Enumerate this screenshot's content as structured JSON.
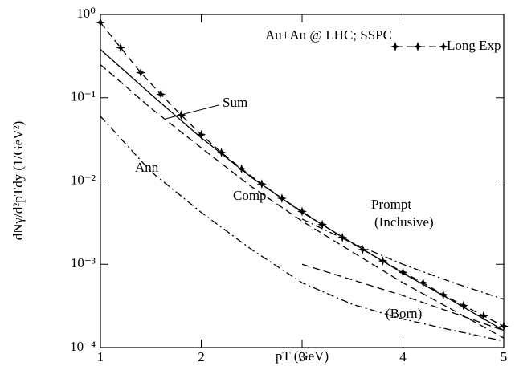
{
  "chart_data": {
    "type": "line",
    "annotations": [
      "Au+Au @ LHC; SSPC",
      "Prompt"
    ],
    "xlabel": "pT (GeV)",
    "ylabel": "dNγ/d²pTdy (1/GeV²)",
    "xlim": [
      1,
      5
    ],
    "xticks": [
      1,
      2,
      3,
      4,
      5
    ],
    "ylim": [
      0.0001,
      1
    ],
    "yscale": "log",
    "yticks": [
      {
        "value": 0.0001,
        "label": "10⁻⁴"
      },
      {
        "value": 0.001,
        "label": "10⁻³"
      },
      {
        "value": 0.01,
        "label": "10⁻²"
      },
      {
        "value": 0.1,
        "label": "10⁻¹"
      },
      {
        "value": 1,
        "label": "10⁰"
      }
    ],
    "series": [
      {
        "name": "Long Exp",
        "color": "#000000",
        "style": "dashed",
        "marker": "star",
        "x": [
          1.0,
          1.2,
          1.4,
          1.6,
          1.8,
          2.0,
          2.2,
          2.4,
          2.6,
          2.8,
          3.0,
          3.2,
          3.4,
          3.6,
          3.8,
          4.0,
          4.2,
          4.4,
          4.6,
          4.8,
          5.0
        ],
        "values": [
          0.8,
          0.4,
          0.2,
          0.11,
          0.062,
          0.036,
          0.022,
          0.014,
          0.0092,
          0.0062,
          0.0043,
          0.003,
          0.0021,
          0.0015,
          0.0011,
          0.0008,
          0.0006,
          0.00043,
          0.00032,
          0.00024,
          0.00018
        ]
      },
      {
        "name": "Sum",
        "color": "#000000",
        "style": "solid",
        "x": [
          1,
          1.5,
          2,
          2.5,
          3,
          3.5,
          4,
          4.5,
          5
        ],
        "values": [
          0.38,
          0.11,
          0.033,
          0.011,
          0.0042,
          0.0018,
          0.00078,
          0.00036,
          0.00016
        ]
      },
      {
        "name": "Comp",
        "color": "#000000",
        "style": "dashed",
        "x": [
          1,
          1.5,
          2,
          2.5,
          3,
          3.5,
          4,
          4.5,
          5
        ],
        "values": [
          0.25,
          0.075,
          0.025,
          0.0085,
          0.0033,
          0.0014,
          0.0006,
          0.00028,
          0.00013
        ]
      },
      {
        "name": "Ann",
        "color": "#000000",
        "style": "dashdot",
        "x": [
          1,
          1.5,
          2,
          2.5,
          3,
          3.5,
          4,
          4.5,
          5
        ],
        "values": [
          0.06,
          0.013,
          0.0042,
          0.0015,
          0.0006,
          0.00033,
          0.00022,
          0.00016,
          0.00012
        ]
      },
      {
        "name": "(Inclusive)",
        "color": "#000000",
        "style": "dashdot",
        "x": [
          3,
          3.5,
          4,
          4.5,
          5
        ],
        "values": [
          0.0035,
          0.0018,
          0.001,
          0.0006,
          0.00038
        ]
      },
      {
        "name": "(Born)",
        "color": "#000000",
        "style": "dashed",
        "x": [
          3,
          3.5,
          4,
          4.5,
          5
        ],
        "values": [
          0.001,
          0.00065,
          0.00042,
          0.00026,
          0.00016
        ]
      }
    ]
  }
}
